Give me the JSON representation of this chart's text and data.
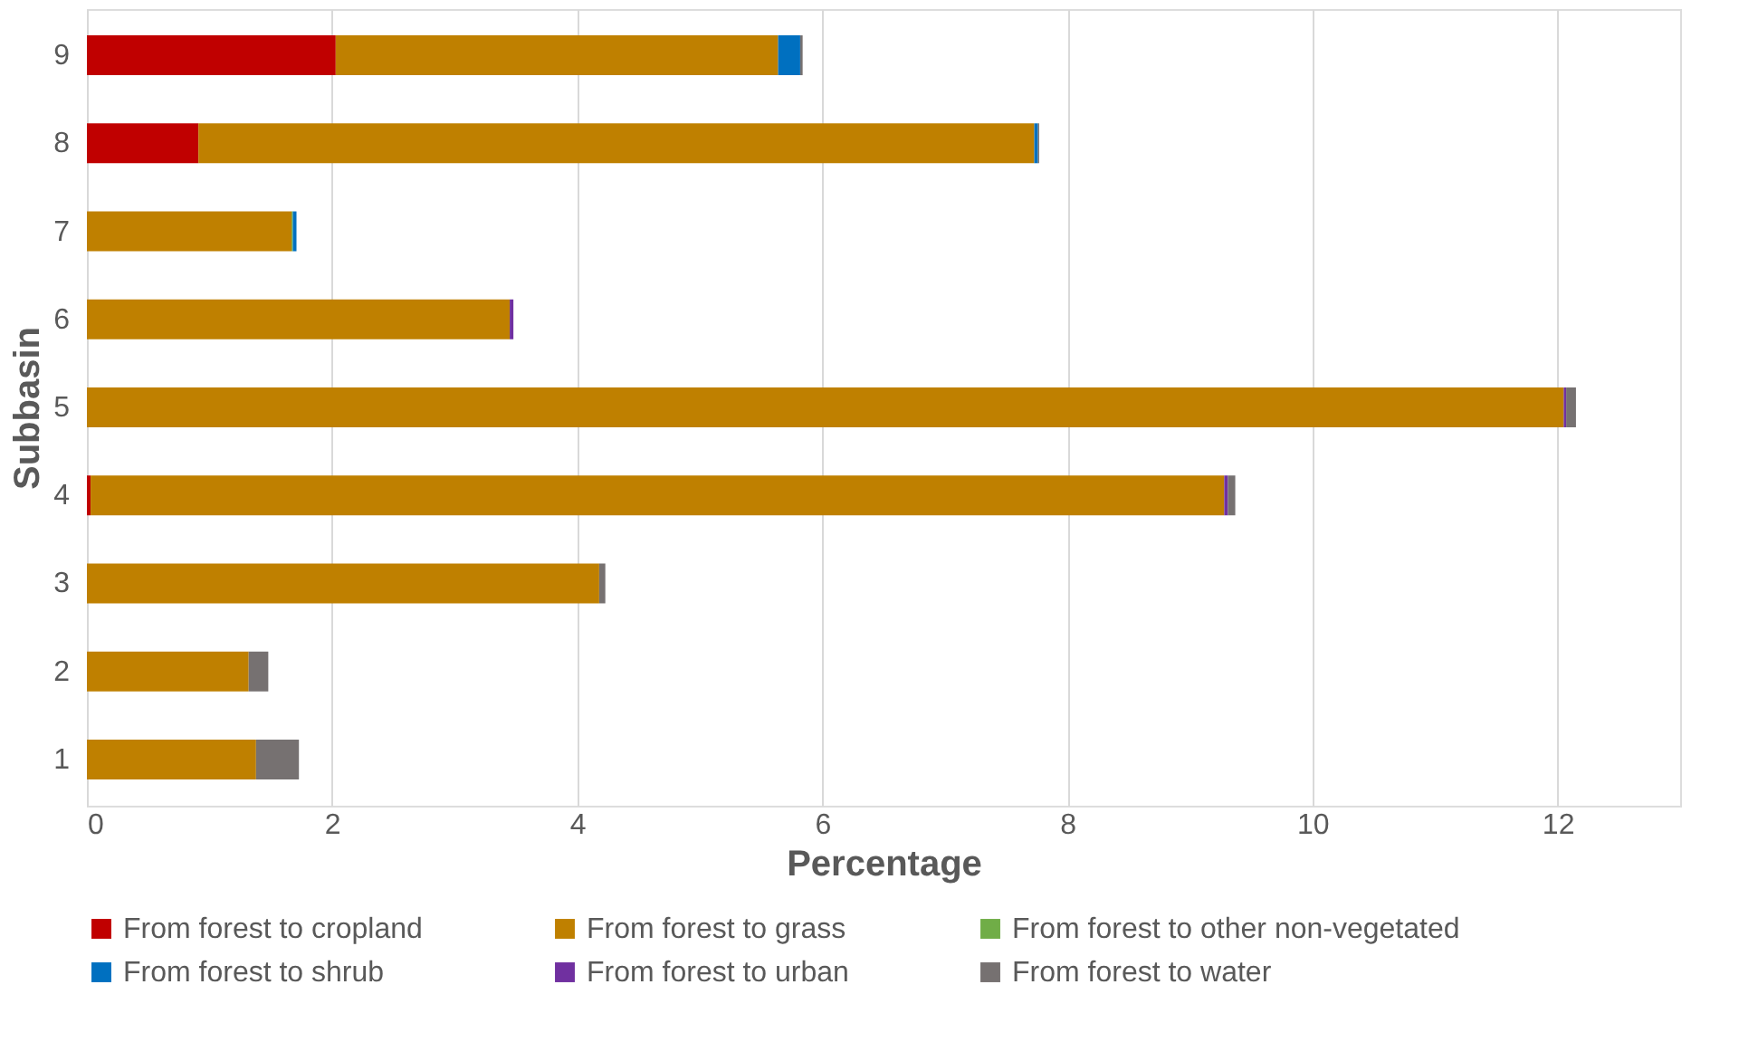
{
  "chart_data": {
    "type": "bar",
    "orientation": "horizontal",
    "stacked": true,
    "xlabel": "Percentage",
    "ylabel": "Subbasin",
    "categories": [
      "9",
      "8",
      "7",
      "6",
      "5",
      "4",
      "3",
      "2",
      "1"
    ],
    "series": [
      {
        "name": "From forest to cropland",
        "color": "#c00000",
        "values": [
          2.03,
          0.91,
          0,
          0,
          0,
          0.03,
          0,
          0,
          0
        ]
      },
      {
        "name": "From forest to grass",
        "color": "#bf8000",
        "values": [
          3.61,
          6.82,
          1.67,
          3.45,
          12.05,
          9.25,
          4.18,
          1.32,
          1.38
        ]
      },
      {
        "name": "From forest to other non-vegetated",
        "color": "#70ad47",
        "values": [
          0,
          0,
          0.01,
          0,
          0,
          0,
          0,
          0,
          0
        ]
      },
      {
        "name": "From forest to shrub",
        "color": "#0070c0",
        "values": [
          0.18,
          0.03,
          0.03,
          0,
          0,
          0,
          0,
          0,
          0
        ]
      },
      {
        "name": "From forest to urban",
        "color": "#7030a0",
        "values": [
          0,
          0,
          0,
          0.03,
          0.02,
          0.03,
          0,
          0,
          0
        ]
      },
      {
        "name": "From forest to water",
        "color": "#767171",
        "values": [
          0.02,
          0.01,
          0,
          0,
          0.08,
          0.06,
          0.05,
          0.16,
          0.35
        ]
      }
    ],
    "xlim": [
      0,
      13
    ],
    "xticks": [
      0,
      2,
      4,
      6,
      8,
      10,
      12
    ],
    "grid": "x",
    "legend": "bottom"
  }
}
